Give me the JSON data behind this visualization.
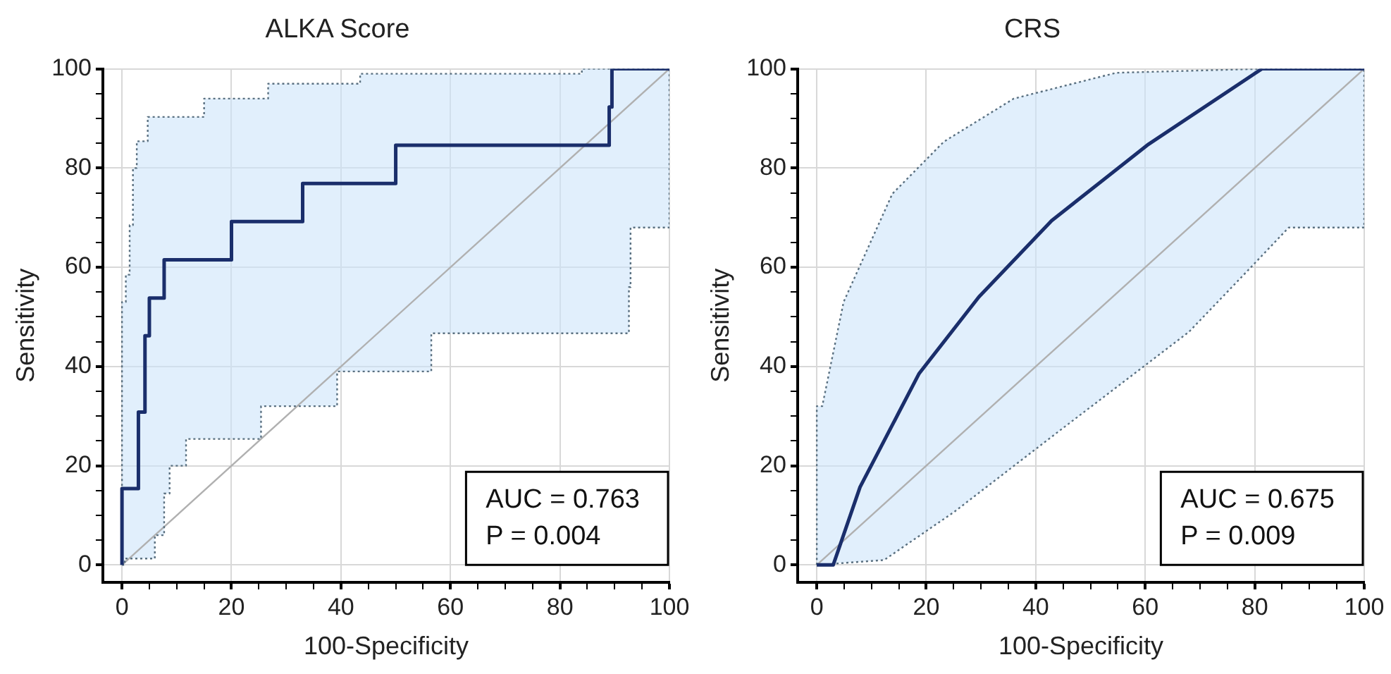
{
  "chart_data": [
    {
      "type": "line",
      "title": "ALKA Score",
      "xlabel": "100-Specificity",
      "ylabel": "Sensitivity",
      "xlim": [
        -3.5,
        100
      ],
      "ylim": [
        -3.5,
        100
      ],
      "xticks": [
        0,
        {
          "value": 5,
          "label": null
        },
        {
          "value": 10,
          "label": null
        },
        {
          "value": 15,
          "label": null
        },
        20,
        {
          "value": 25,
          "label": null
        },
        {
          "value": 30,
          "label": null
        },
        {
          "value": 35,
          "label": null
        },
        40,
        {
          "value": 45,
          "label": null
        },
        {
          "value": 50,
          "label": null
        },
        {
          "value": 55,
          "label": null
        },
        60,
        {
          "value": 65,
          "label": null
        },
        {
          "value": 70,
          "label": null
        },
        {
          "value": 75,
          "label": null
        },
        80,
        {
          "value": 85,
          "label": null
        },
        {
          "value": 90,
          "label": null
        },
        {
          "value": 95,
          "label": null
        },
        100
      ],
      "yticks": [
        0,
        {
          "value": 5,
          "label": null
        },
        {
          "value": 10,
          "label": null
        },
        {
          "value": 15,
          "label": null
        },
        20,
        {
          "value": 25,
          "label": null
        },
        {
          "value": 30,
          "label": null
        },
        {
          "value": 35,
          "label": null
        },
        40,
        {
          "value": 45,
          "label": null
        },
        {
          "value": 50,
          "label": null
        },
        {
          "value": 55,
          "label": null
        },
        60,
        {
          "value": 65,
          "label": null
        },
        {
          "value": 70,
          "label": null
        },
        {
          "value": 75,
          "label": null
        },
        80,
        {
          "value": 85,
          "label": null
        },
        {
          "value": 90,
          "label": null
        },
        {
          "value": 95,
          "label": null
        },
        100
      ],
      "grid": true,
      "legend": false,
      "marker": "none",
      "series": [
        {
          "color": "#1a2e6b",
          "line_style": "solid",
          "x": [
            0,
            0,
            3,
            3,
            4.2,
            4.2,
            5,
            5,
            7.7,
            7.7,
            20,
            20,
            33,
            33,
            50,
            50,
            89,
            89,
            89.5,
            89.5,
            100
          ],
          "values": [
            0,
            15.4,
            15.4,
            30.8,
            30.8,
            46.2,
            46.2,
            53.8,
            53.8,
            61.5,
            61.5,
            69.2,
            69.2,
            76.9,
            76.9,
            84.6,
            84.6,
            92.3,
            92.3,
            100,
            100
          ]
        },
        {
          "color": "#5a7080",
          "line_style": "dotted",
          "x": [
            0,
            0,
            0.7,
            0.7,
            1.4,
            1.4,
            2,
            2,
            2.7,
            2.7,
            4.7,
            4.7,
            15,
            15,
            26.7,
            26.7,
            43.5,
            43.5,
            84,
            84,
            100
          ],
          "values": [
            0,
            53,
            53,
            58.5,
            58.5,
            68.5,
            68.5,
            80,
            80,
            85.4,
            85.4,
            90.3,
            90.3,
            94,
            94,
            97,
            97,
            99,
            99,
            100,
            100
          ]
        },
        {
          "color": "#5a7080",
          "line_style": "dotted",
          "x": [
            0,
            0.5,
            0.5,
            6,
            6,
            7.7,
            7.7,
            8.7,
            8.7,
            11.7,
            11.7,
            25.4,
            25.4,
            39.3,
            39.3,
            56.5,
            56.5,
            92.6,
            92.6,
            92.9,
            92.9,
            100,
            100
          ],
          "values": [
            0,
            0,
            1.3,
            1.3,
            6,
            6,
            14.4,
            14.4,
            20,
            20,
            25.4,
            25.4,
            32,
            32,
            39,
            39,
            46.7,
            46.7,
            56,
            56,
            68,
            68,
            100
          ]
        },
        {
          "color": "#b0b0b0",
          "line_style": "solid",
          "x": [
            0,
            100
          ],
          "values": [
            0,
            100
          ]
        }
      ],
      "annotations": [
        "AUC = 0.763",
        "P = 0.004"
      ]
    },
    {
      "type": "line",
      "title": "CRS",
      "xlabel": "100-Specificity",
      "ylabel": "Sensitivity",
      "xlim": [
        -3.5,
        100
      ],
      "ylim": [
        -3.5,
        100
      ],
      "xticks": [
        0,
        {
          "value": 5,
          "label": null
        },
        {
          "value": 10,
          "label": null
        },
        {
          "value": 15,
          "label": null
        },
        20,
        {
          "value": 25,
          "label": null
        },
        {
          "value": 30,
          "label": null
        },
        {
          "value": 35,
          "label": null
        },
        40,
        {
          "value": 45,
          "label": null
        },
        {
          "value": 50,
          "label": null
        },
        {
          "value": 55,
          "label": null
        },
        60,
        {
          "value": 65,
          "label": null
        },
        {
          "value": 70,
          "label": null
        },
        {
          "value": 75,
          "label": null
        },
        80,
        {
          "value": 85,
          "label": null
        },
        {
          "value": 90,
          "label": null
        },
        {
          "value": 95,
          "label": null
        },
        100
      ],
      "yticks": [
        0,
        {
          "value": 5,
          "label": null
        },
        {
          "value": 10,
          "label": null
        },
        {
          "value": 15,
          "label": null
        },
        20,
        {
          "value": 25,
          "label": null
        },
        {
          "value": 30,
          "label": null
        },
        {
          "value": 35,
          "label": null
        },
        40,
        {
          "value": 45,
          "label": null
        },
        {
          "value": 50,
          "label": null
        },
        {
          "value": 55,
          "label": null
        },
        60,
        {
          "value": 65,
          "label": null
        },
        {
          "value": 70,
          "label": null
        },
        {
          "value": 75,
          "label": null
        },
        80,
        {
          "value": 85,
          "label": null
        },
        {
          "value": 90,
          "label": null
        },
        {
          "value": 95,
          "label": null
        },
        100
      ],
      "grid": true,
      "legend": false,
      "marker": "none",
      "series": [
        {
          "color": "#1a2e6b",
          "line_style": "solid",
          "x": [
            0,
            3,
            7.9,
            18.7,
            29.6,
            42.9,
            60.6,
            81.3,
            100
          ],
          "values": [
            0,
            0,
            15.7,
            38.6,
            54,
            69.4,
            84.8,
            100,
            100
          ]
        },
        {
          "color": "#5a7080",
          "line_style": "dotted",
          "x": [
            0,
            0,
            1,
            4.9,
            13.8,
            23.2,
            36,
            54.7,
            81.3,
            100
          ],
          "values": [
            0,
            32,
            32,
            53,
            74.8,
            85.3,
            94,
            99.2,
            100,
            100
          ]
        },
        {
          "color": "#5a7080",
          "line_style": "dotted",
          "x": [
            0,
            12.3,
            25.1,
            43.8,
            68,
            79.3,
            86.2,
            100,
            100
          ],
          "values": [
            0,
            1,
            10.7,
            26.6,
            47,
            60,
            68,
            68,
            100
          ]
        },
        {
          "color": "#b0b0b0",
          "line_style": "solid",
          "x": [
            0,
            100
          ],
          "values": [
            0,
            100
          ]
        }
      ],
      "annotations": [
        "AUC = 0.675",
        "P = 0.009"
      ]
    }
  ]
}
